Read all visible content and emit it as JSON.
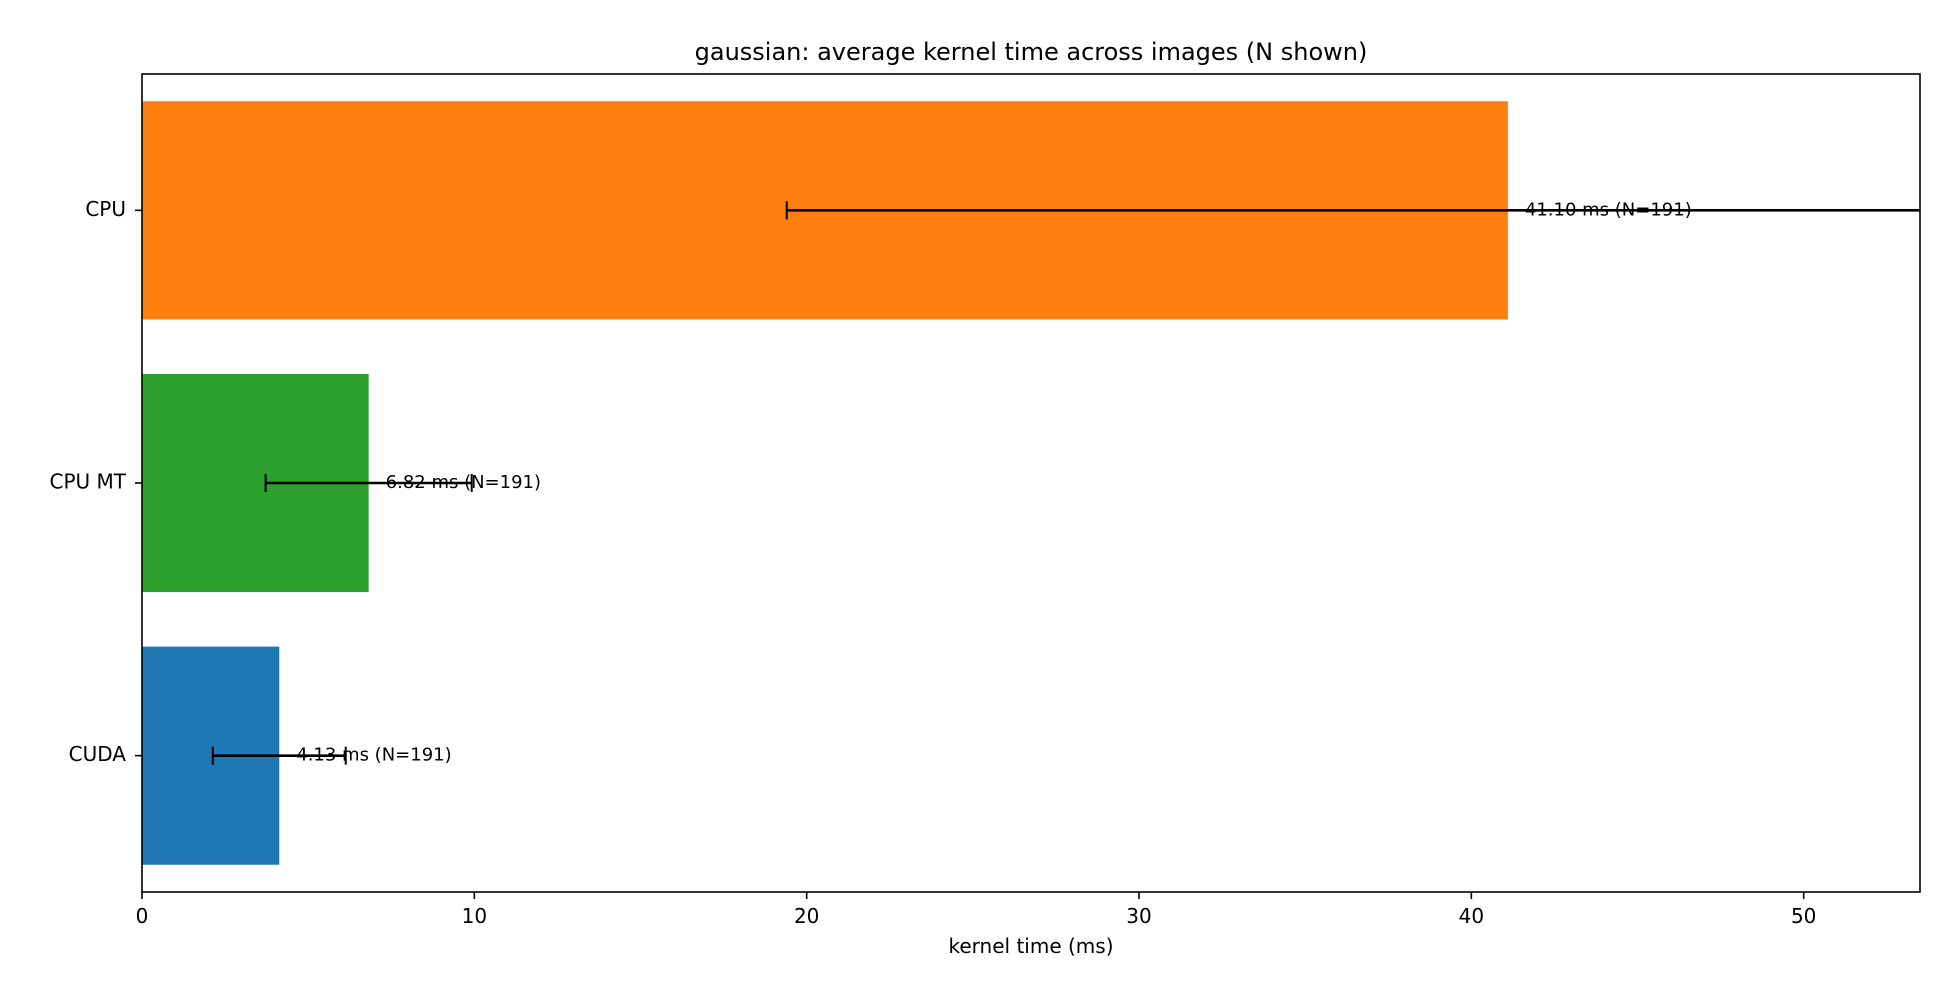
{
  "chart_data": {
    "type": "bar",
    "orientation": "horizontal",
    "title": "gaussian: average kernel time across images (N shown)",
    "xlabel": "kernel time (ms)",
    "ylabel": "",
    "xlim": [
      0,
      53.5
    ],
    "xticks": [
      0,
      10,
      20,
      30,
      40,
      50
    ],
    "grid": false,
    "categories": [
      "CPU",
      "CPU MT",
      "CUDA"
    ],
    "values": [
      41.1,
      6.82,
      4.13
    ],
    "errors": [
      21.7,
      3.1,
      2.0
    ],
    "colors": [
      "#ff7f0e",
      "#2ca02c",
      "#1f77b4"
    ],
    "data_labels": [
      "41.10 ms  (N=191)",
      "6.82 ms  (N=191)",
      "4.13 ms  (N=191)"
    ]
  }
}
